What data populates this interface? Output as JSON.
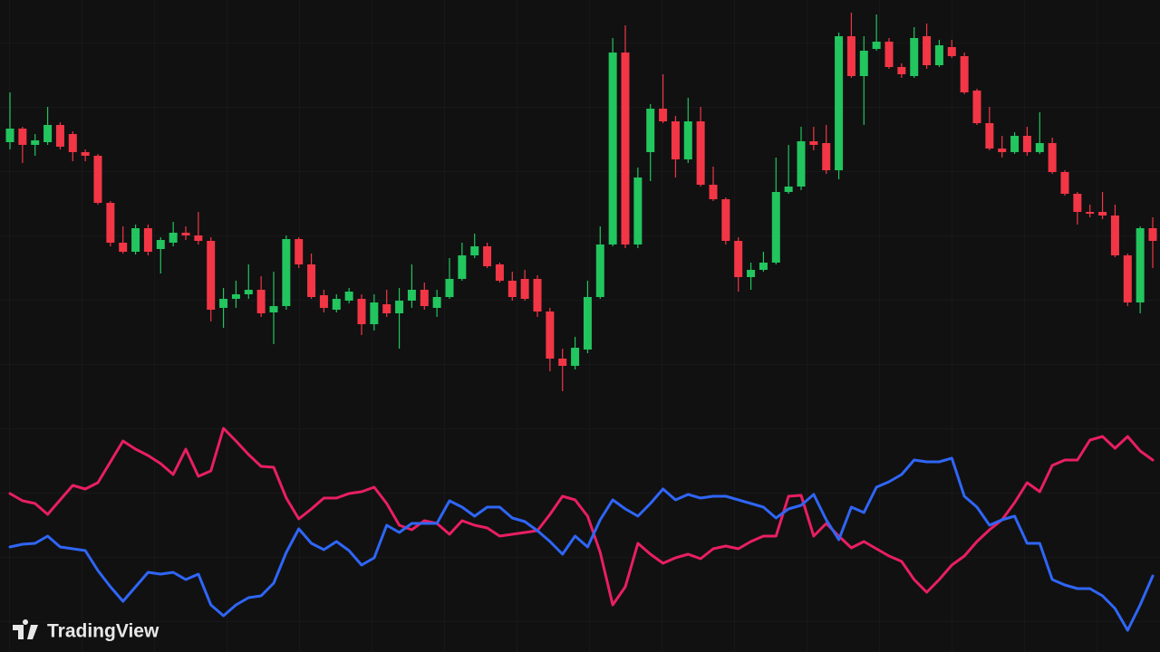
{
  "chart_data": [
    {
      "type": "candlestick",
      "up_color": "#22c55e",
      "down_color": "#f23645",
      "ylim": [
        0,
        450
      ],
      "open": [
        293,
        308,
        290,
        293,
        312,
        302,
        282,
        278,
        226,
        182,
        172,
        198,
        175,
        182,
        193,
        190,
        184,
        110,
        120,
        125,
        130,
        105,
        112,
        186,
        158,
        124,
        108,
        118,
        120,
        92,
        114,
        104,
        118,
        130,
        110,
        122,
        142,
        168,
        178,
        158,
        140,
        142,
        142,
        106,
        54,
        46,
        64,
        122,
        180,
        392,
        180,
        282,
        330,
        316,
        274,
        316,
        246,
        230,
        184,
        144,
        152,
        160,
        238,
        244,
        294,
        292,
        262,
        410,
        366,
        396,
        404,
        376,
        366,
        410,
        378,
        398,
        388,
        350,
        314,
        286,
        282,
        300,
        282,
        292,
        260,
        236,
        216,
        216,
        212,
        168,
        116,
        198
      ],
      "high": [
        348,
        310,
        302,
        332,
        315,
        305,
        285,
        280,
        228,
        200,
        202,
        202,
        188,
        205,
        200,
        216,
        188,
        132,
        140,
        158,
        145,
        150,
        190,
        188,
        170,
        130,
        125,
        132,
        125,
        125,
        130,
        132,
        158,
        138,
        130,
        165,
        182,
        192,
        182,
        160,
        150,
        152,
        146,
        110,
        65,
        78,
        140,
        200,
        408,
        422,
        265,
        335,
        368,
        322,
        342,
        332,
        266,
        232,
        188,
        160,
        172,
        276,
        290,
        310,
        310,
        312,
        414,
        436,
        410,
        434,
        408,
        380,
        420,
        424,
        406,
        406,
        392,
        352,
        332,
        300,
        304,
        310,
        326,
        298,
        262,
        238,
        224,
        238,
        224,
        170,
        200,
        210
      ],
      "low": [
        285,
        270,
        278,
        290,
        285,
        272,
        272,
        224,
        178,
        170,
        169,
        168,
        148,
        178,
        185,
        180,
        95,
        88,
        110,
        120,
        100,
        70,
        108,
        154,
        120,
        105,
        105,
        115,
        80,
        85,
        100,
        65,
        110,
        108,
        100,
        120,
        140,
        165,
        154,
        138,
        118,
        118,
        100,
        40,
        18,
        42,
        60,
        120,
        178,
        176,
        176,
        250,
        314,
        254,
        270,
        244,
        228,
        180,
        128,
        130,
        150,
        158,
        236,
        240,
        284,
        258,
        252,
        364,
        312,
        394,
        374,
        364,
        364,
        374,
        376,
        386,
        346,
        312,
        284,
        276,
        280,
        278,
        280,
        258,
        234,
        202,
        210,
        208,
        166,
        112,
        104,
        154
      ],
      "close": [
        308,
        290,
        295,
        312,
        288,
        282,
        278,
        226,
        182,
        172,
        198,
        172,
        185,
        193,
        190,
        184,
        108,
        120,
        125,
        130,
        104,
        112,
        186,
        158,
        122,
        110,
        120,
        128,
        92,
        116,
        104,
        118,
        130,
        112,
        122,
        142,
        168,
        178,
        156,
        140,
        122,
        120,
        106,
        54,
        46,
        66,
        122,
        180,
        392,
        180,
        254,
        330,
        316,
        274,
        316,
        246,
        230,
        184,
        144,
        152,
        160,
        238,
        244,
        294,
        290,
        262,
        410,
        366,
        394,
        404,
        376,
        368,
        408,
        378,
        400,
        388,
        348,
        314,
        286,
        282,
        300,
        282,
        292,
        260,
        236,
        216,
        214,
        212,
        168,
        116,
        198,
        184
      ]
    },
    {
      "type": "line",
      "ylim": [
        0,
        270
      ],
      "series": [
        {
          "color": "#e91e63",
          "values": [
            175,
            167,
            164,
            152,
            168,
            184,
            180,
            187,
            210,
            233,
            224,
            217,
            208,
            196,
            224,
            194,
            200,
            247,
            233,
            218,
            205,
            204,
            170,
            147,
            158,
            170,
            170,
            175,
            177,
            182,
            164,
            140,
            135,
            145,
            142,
            130,
            145,
            140,
            137,
            128,
            130,
            132,
            134,
            152,
            172,
            168,
            150,
            110,
            52,
            72,
            120,
            108,
            98,
            104,
            108,
            103,
            114,
            117,
            114,
            122,
            128,
            128,
            172,
            173,
            128,
            142,
            128,
            115,
            122,
            114,
            106,
            100,
            80,
            66,
            80,
            96,
            106,
            122,
            135,
            146,
            165,
            187,
            177,
            206,
            212,
            212,
            234,
            238,
            225,
            238,
            222,
            212
          ]
        },
        {
          "color": "#2f66f6",
          "values": [
            116,
            119,
            120,
            128,
            116,
            114,
            112,
            90,
            72,
            56,
            72,
            88,
            86,
            88,
            80,
            86,
            52,
            40,
            52,
            60,
            62,
            76,
            110,
            136,
            120,
            113,
            122,
            112,
            96,
            104,
            140,
            132,
            142,
            142,
            142,
            167,
            160,
            150,
            160,
            160,
            148,
            144,
            134,
            122,
            108,
            128,
            116,
            146,
            168,
            158,
            150,
            164,
            180,
            168,
            174,
            170,
            172,
            172,
            168,
            164,
            160,
            148,
            158,
            162,
            174,
            146,
            124,
            160,
            154,
            182,
            188,
            196,
            212,
            210,
            210,
            214,
            172,
            160,
            140,
            146,
            150,
            120,
            120,
            80,
            74,
            70,
            70,
            62,
            48,
            24,
            52,
            84
          ]
        }
      ]
    }
  ],
  "watermark": {
    "text": "TradingView"
  }
}
